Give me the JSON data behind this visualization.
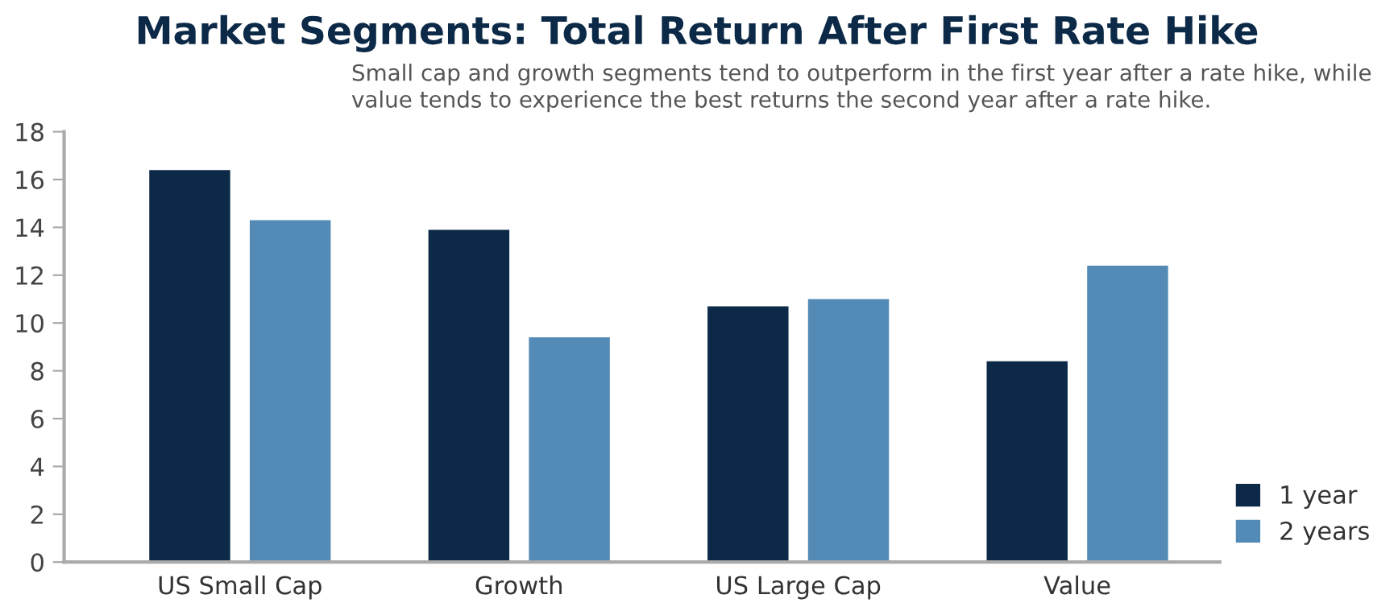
{
  "chart_data": {
    "type": "bar",
    "title": "Market Segments: Total Return After First Rate Hike",
    "subtitle": "Small cap and growth segments tend to outperform in the first year after a rate hike, while\nvalue tends to experience the best returns the second year after a rate hike.",
    "categories": [
      "US Small Cap",
      "Growth",
      "US Large Cap",
      "Value"
    ],
    "series": [
      {
        "name": "1 year",
        "color": "#0c2a47",
        "values": [
          16.4,
          13.9,
          10.7,
          8.4
        ]
      },
      {
        "name": "2 years",
        "color": "#548bb6",
        "values": [
          14.3,
          9.4,
          11.0,
          12.4
        ]
      }
    ],
    "ylim": [
      0,
      18
    ],
    "yticks": [
      0,
      2,
      4,
      6,
      8,
      10,
      12,
      14,
      16,
      18
    ],
    "grid": false,
    "legend": "right"
  }
}
